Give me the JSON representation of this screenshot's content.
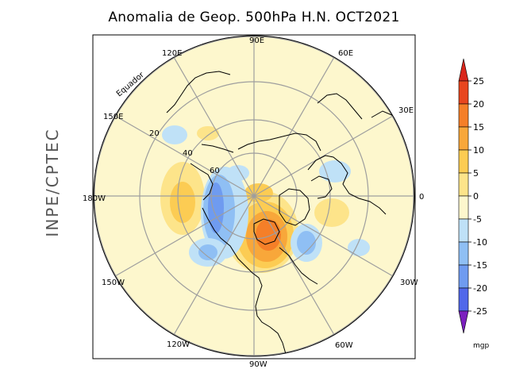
{
  "title": "Anomalia de Geop. 500hPa H.N. OCT2021",
  "side_label": "INPE/CPTEC",
  "map": {
    "projection": "polar stereographic, northern hemisphere",
    "longitude_labels": [
      "0",
      "30E",
      "60E",
      "90E",
      "120E",
      "150E",
      "180W",
      "150W",
      "120W",
      "90W",
      "60W",
      "30W"
    ],
    "latitude_labels": [
      "20",
      "40",
      "60"
    ],
    "equator_label": "Equador"
  },
  "colorbar": {
    "ticks": [
      "25",
      "20",
      "15",
      "10",
      "5",
      "0",
      "-5",
      "-10",
      "-15",
      "-20",
      "-25"
    ],
    "unit": "mgp",
    "colors": [
      "#e8461e",
      "#f57f28",
      "#f8a73a",
      "#fccc53",
      "#fde48a",
      "#fdf7cd",
      "#bfe1f7",
      "#8fbff4",
      "#6f9bf0",
      "#5168ea",
      "#3c3fe2",
      "#7b1fbe"
    ],
    "top_arrow_color": "#d9261c",
    "bottom_arrow_color": "#7b1fbe"
  },
  "anomaly_regions": [
    {
      "name": "Canada/Hudson Bay",
      "level": 20
    },
    {
      "name": "Central Pacific",
      "level": 10
    },
    {
      "name": "North Pacific",
      "level": -10
    },
    {
      "name": "Eastern Canada",
      "level": -10
    },
    {
      "name": "Europe",
      "level": 5
    },
    {
      "name": "Scandinavia",
      "level": -5
    },
    {
      "name": "North Atlantic",
      "level": -5
    }
  ]
}
